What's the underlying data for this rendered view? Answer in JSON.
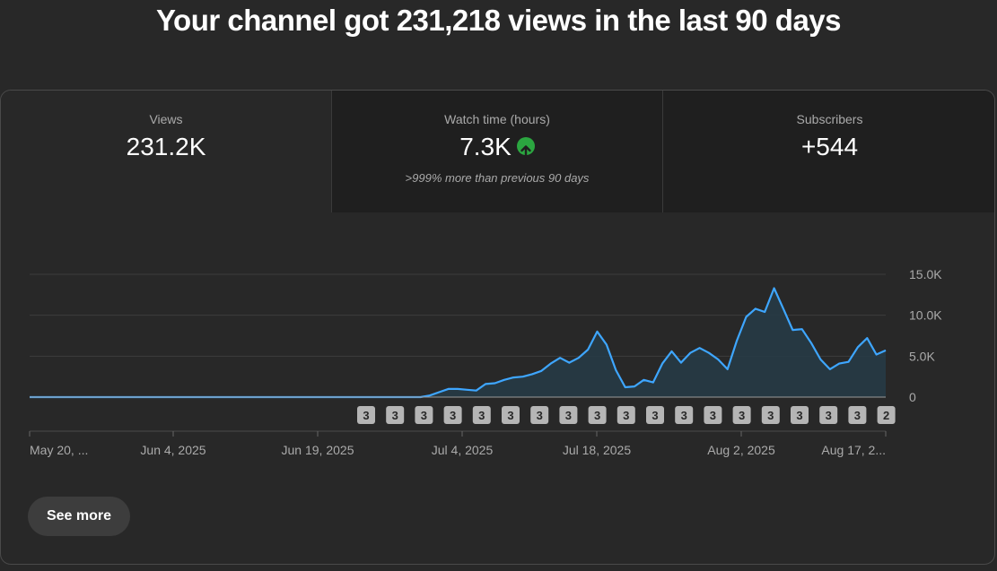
{
  "headline": "Your channel got 231,218 views in the last 90 days",
  "tabs": [
    {
      "label": "Views",
      "value": "231.2K",
      "sub": "",
      "selected": true
    },
    {
      "label": "Watch time (hours)",
      "value": "7.3K",
      "sub": ">999% more than previous 90 days",
      "trend_icon": "arrow-up-circle-icon",
      "selected": false
    },
    {
      "label": "Subscribers",
      "value": "+544",
      "sub": "",
      "selected": false
    }
  ],
  "chart_data": {
    "type": "area",
    "series": [
      {
        "values": [
          0,
          0,
          0,
          0,
          0,
          0,
          0,
          0,
          0,
          0,
          0,
          0,
          0,
          0,
          0,
          0,
          0,
          0,
          0,
          0,
          0,
          0,
          0,
          0,
          0,
          0,
          0,
          0,
          0,
          0,
          0,
          0,
          0,
          0,
          0,
          0,
          0,
          0,
          0,
          0,
          0,
          0,
          0,
          200,
          600,
          1000,
          1000,
          900,
          800,
          1600,
          1700,
          2100,
          2400,
          2500,
          2800,
          3200,
          4100,
          4800,
          4200,
          4800,
          5800,
          8000,
          6400,
          3300,
          1200,
          1300,
          2100,
          1800,
          4100,
          5600,
          4200,
          5400,
          6000,
          5400,
          4600,
          3400,
          6900,
          9800,
          10800,
          10400,
          13300,
          10800,
          8200,
          8300,
          6600,
          4600,
          3400,
          4100,
          4300,
          6100,
          7200,
          5200,
          5700
        ]
      }
    ],
    "x_ticks": [
      "May 20, ...",
      "Jun 4, 2025",
      "Jun 19, 2025",
      "Jul 4, 2025",
      "Jul 18, 2025",
      "Aug 2, 2025",
      "Aug 17, 2..."
    ],
    "y_ticks": [
      "15.0K",
      "10.0K",
      "5.0K",
      "0"
    ],
    "ylim": [
      0,
      15000
    ],
    "grid": true,
    "markers": [
      "3",
      "3",
      "3",
      "3",
      "3",
      "3",
      "3",
      "3",
      "3",
      "3",
      "3",
      "3",
      "3",
      "3",
      "3",
      "3",
      "3",
      "3",
      "2"
    ],
    "line_color": "#3ea6ff",
    "fill_color": "#263a45"
  },
  "see_more_label": "See more"
}
